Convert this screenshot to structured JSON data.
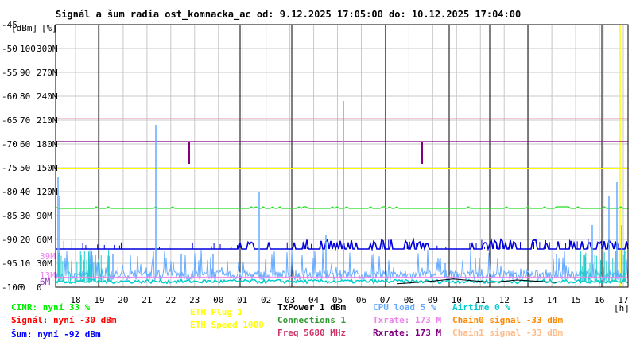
{
  "title": "Signál a šum radia ost_komnacka_ac od: 9.12.2025 17:05:00 do: 10.12.2025 17:04:00",
  "chart_data": {
    "type": "line",
    "title": "Signál a šum radia ost_komnacka_ac od: 9.12.2025 17:05:00 do: 10.12.2025 17:04:00",
    "y_unit_labels": [
      "[dBm]",
      "[%]"
    ],
    "x_unit_label": "[h]",
    "ylim_dbm": [
      -100,
      -45
    ],
    "y_ticks": [
      {
        "dbm": "-45",
        "pct": "",
        "rate": ""
      },
      {
        "dbm": "-50",
        "pct": "100",
        "rate": "300M"
      },
      {
        "dbm": "-55",
        "pct": "90",
        "rate": "270M"
      },
      {
        "dbm": "-60",
        "pct": "80",
        "rate": "240M"
      },
      {
        "dbm": "-65",
        "pct": "70",
        "rate": "210M"
      },
      {
        "dbm": "-70",
        "pct": "60",
        "rate": "180M"
      },
      {
        "dbm": "-75",
        "pct": "50",
        "rate": "150M"
      },
      {
        "dbm": "-80",
        "pct": "40",
        "rate": "120M"
      },
      {
        "dbm": "-85",
        "pct": "30",
        "rate": "90M"
      },
      {
        "dbm": "-90",
        "pct": "20",
        "rate": "60M"
      },
      {
        "dbm": "-95",
        "pct": "10",
        "rate": "30M"
      },
      {
        "dbm": "-100",
        "pct": "0",
        "rate": "0"
      }
    ],
    "rate_markers": [
      {
        "label": "39M",
        "color": "#ee82ee"
      },
      {
        "label": "13M",
        "color": "#ee82ee"
      },
      {
        "label": "6M",
        "color": "#9932cc"
      }
    ],
    "x_ticks": [
      "18",
      "19",
      "20",
      "21",
      "22",
      "23",
      "00",
      "01",
      "02",
      "03",
      "04",
      "05",
      "06",
      "07",
      "08",
      "09",
      "10",
      "11",
      "12",
      "13",
      "14",
      "15",
      "16",
      "17"
    ],
    "series": [
      {
        "name": "CINR",
        "color": "#00cc00",
        "level_pct": 33
      },
      {
        "name": "Signál",
        "color": "#ff0000",
        "level_dbm": -30
      },
      {
        "name": "Šum",
        "color": "#0000ff",
        "level_dbm": -92
      },
      {
        "name": "Connections",
        "color": "#33cc33",
        "level": 1
      },
      {
        "name": "CPU load",
        "color": "#66aaff",
        "level_pct": 5
      },
      {
        "name": "Airtime",
        "color": "#00cccc",
        "level_pct": 0
      },
      {
        "name": "Txrate",
        "color": "#ee82ee",
        "level_mbps": 173
      },
      {
        "name": "Rxrate",
        "color": "#800080",
        "level_mbps": 173
      },
      {
        "name": "ETH Speed",
        "color": "#ffff00",
        "level_mbps": 1000
      }
    ]
  },
  "legend": {
    "cinr": "CINR: nyní 33 %",
    "signal": "Signál: nyní -30 dBm",
    "sum": "Šum: nyní -92 dBm",
    "eth_plug": "ETH Plug 1",
    "eth_speed": "ETH Speed 1000",
    "txpower": "TxPower 1 dBm",
    "connections": "Connections 1",
    "freq": "Freq 5680 MHz",
    "cpu": "CPU load 5 %",
    "txrate": "Txrate: 173 M",
    "rxrate": "Rxrate: 173 M",
    "airtime": "Airtime 0 %",
    "chain0": "Chain0 signal -33 dBm",
    "chain1": "Chain1 signal -33 dBm"
  },
  "colors": {
    "cinr": "#00ee00",
    "signal": "#ff0000",
    "sum": "#0000ff",
    "eth_plug": "#ffff00",
    "eth_speed": "#ffff00",
    "txpower": "#000000",
    "connections": "#339933",
    "freq": "#cc3366",
    "cpu": "#66aaff",
    "txrate": "#ee82ee",
    "rxrate": "#800080",
    "airtime": "#00cccc",
    "chain0": "#ff8800",
    "chain1": "#ffbb88"
  }
}
